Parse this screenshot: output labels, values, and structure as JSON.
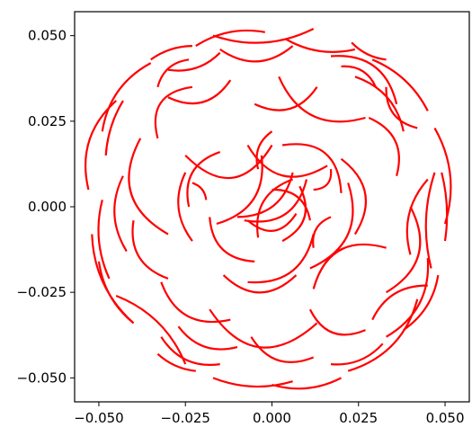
{
  "chart_data": {
    "type": "line",
    "title": "",
    "xlabel": "",
    "ylabel": "",
    "xlim": [
      -0.057,
      0.057
    ],
    "ylim": [
      -0.057,
      0.057
    ],
    "xticks": [
      {
        "value": -0.05,
        "label": "−0.050"
      },
      {
        "value": -0.025,
        "label": "−0.025"
      },
      {
        "value": 0.0,
        "label": "0.000"
      },
      {
        "value": 0.025,
        "label": "0.025"
      },
      {
        "value": 0.05,
        "label": "0.050"
      }
    ],
    "yticks": [
      {
        "value": 0.05,
        "label": "0.050"
      },
      {
        "value": 0.025,
        "label": "0.025"
      },
      {
        "value": 0.0,
        "label": "0.000"
      },
      {
        "value": -0.025,
        "label": "−0.025"
      },
      {
        "value": -0.05,
        "label": "−0.050"
      }
    ],
    "grid": false,
    "series_color": "#ff0000",
    "arcs": [
      {
        "start": [
          0.006,
          0.008
        ],
        "end": [
          -0.004,
          -0.009
        ],
        "bend": 0.004
      },
      {
        "start": [
          0.01,
          0.008
        ],
        "end": [
          -0.008,
          -0.004
        ],
        "bend": -0.005
      },
      {
        "start": [
          0.003,
          -0.01
        ],
        "end": [
          0.008,
          0.006
        ],
        "bend": 0.004
      },
      {
        "start": [
          0.0,
          0.005
        ],
        "end": [
          0.011,
          -0.004
        ],
        "bend": -0.003
      },
      {
        "start": [
          -0.007,
          -0.004
        ],
        "end": [
          0.007,
          -0.002
        ],
        "bend": 0.004
      },
      {
        "start": [
          -0.01,
          -0.003
        ],
        "end": [
          0.006,
          0.01
        ],
        "bend": 0.004
      },
      {
        "start": [
          -0.025,
          0.015
        ],
        "end": [
          0.0,
          0.018
        ],
        "bend": 0.008
      },
      {
        "start": [
          -0.024,
          0.0
        ],
        "end": [
          -0.015,
          0.016
        ],
        "bend": -0.004
      },
      {
        "start": [
          -0.025,
          0.01
        ],
        "end": [
          -0.023,
          -0.01
        ],
        "bend": 0.003
      },
      {
        "start": [
          -0.016,
          -0.005
        ],
        "end": [
          -0.003,
          0.015
        ],
        "bend": 0.005
      },
      {
        "start": [
          -0.007,
          0.018
        ],
        "end": [
          0.016,
          0.012
        ],
        "bend": 0.006
      },
      {
        "start": [
          -0.004,
          0.011
        ],
        "end": [
          0.0,
          0.022
        ],
        "bend": -0.002
      },
      {
        "start": [
          0.003,
          0.018
        ],
        "end": [
          0.02,
          0.004
        ],
        "bend": -0.006
      },
      {
        "start": [
          0.012,
          0.005
        ],
        "end": [
          0.017,
          0.011
        ],
        "bend": 0.002
      },
      {
        "start": [
          0.02,
          0.014
        ],
        "end": [
          0.024,
          -0.008
        ],
        "bend": -0.005
      },
      {
        "start": [
          0.022,
          0.007
        ],
        "end": [
          0.011,
          -0.018
        ],
        "bend": -0.006
      },
      {
        "start": [
          0.017,
          -0.003
        ],
        "end": [
          0.012,
          -0.012
        ],
        "bend": 0.002
      },
      {
        "start": [
          0.012,
          -0.008
        ],
        "end": [
          -0.007,
          -0.022
        ],
        "bend": -0.005
      },
      {
        "start": [
          0.007,
          -0.02
        ],
        "end": [
          -0.014,
          -0.02
        ],
        "bend": -0.005
      },
      {
        "start": [
          -0.005,
          -0.016
        ],
        "end": [
          -0.018,
          -0.003
        ],
        "bend": -0.004
      },
      {
        "start": [
          -0.019,
          0.002
        ],
        "end": [
          -0.023,
          0.007
        ],
        "bend": 0.001
      },
      {
        "start": [
          -0.03,
          0.032
        ],
        "end": [
          -0.012,
          0.037
        ],
        "bend": 0.004
      },
      {
        "start": [
          -0.033,
          0.02
        ],
        "end": [
          -0.023,
          0.035
        ],
        "bend": -0.005
      },
      {
        "start": [
          -0.038,
          0.02
        ],
        "end": [
          -0.03,
          -0.008
        ],
        "bend": 0.007
      },
      {
        "start": [
          -0.04,
          -0.004
        ],
        "end": [
          -0.03,
          -0.021
        ],
        "bend": 0.004
      },
      {
        "start": [
          -0.043,
          0.009
        ],
        "end": [
          -0.042,
          -0.013
        ],
        "bend": 0.003
      },
      {
        "start": [
          -0.032,
          -0.022
        ],
        "end": [
          -0.012,
          -0.033
        ],
        "bend": 0.005
      },
      {
        "start": [
          -0.027,
          -0.035
        ],
        "end": [
          -0.01,
          -0.041
        ],
        "bend": 0.003
      },
      {
        "start": [
          -0.018,
          -0.03
        ],
        "end": [
          0.013,
          -0.034
        ],
        "bend": 0.009
      },
      {
        "start": [
          -0.006,
          -0.038
        ],
        "end": [
          0.012,
          -0.044
        ],
        "bend": 0.004
      },
      {
        "start": [
          0.012,
          -0.024
        ],
        "end": [
          0.033,
          -0.012
        ],
        "bend": -0.006
      },
      {
        "start": [
          0.011,
          -0.03
        ],
        "end": [
          0.027,
          -0.036
        ],
        "bend": 0.004
      },
      {
        "start": [
          0.029,
          -0.033
        ],
        "end": [
          0.045,
          -0.023
        ],
        "bend": -0.003
      },
      {
        "start": [
          0.033,
          -0.025
        ],
        "end": [
          0.04,
          0.0
        ],
        "bend": 0.006
      },
      {
        "start": [
          0.04,
          -0.014
        ],
        "end": [
          0.045,
          0.008
        ],
        "bend": -0.003
      },
      {
        "start": [
          0.036,
          0.009
        ],
        "end": [
          0.028,
          0.026
        ],
        "bend": 0.004
      },
      {
        "start": [
          0.033,
          0.035
        ],
        "end": [
          0.042,
          0.023
        ],
        "bend": 0.003
      },
      {
        "start": [
          0.03,
          0.035
        ],
        "end": [
          0.02,
          0.041
        ],
        "bend": 0.002
      },
      {
        "start": [
          0.017,
          0.044
        ],
        "end": [
          0.036,
          0.03
        ],
        "bend": -0.005
      },
      {
        "start": [
          0.002,
          0.038
        ],
        "end": [
          0.027,
          0.026
        ],
        "bend": 0.006
      },
      {
        "start": [
          -0.005,
          0.03
        ],
        "end": [
          0.013,
          0.035
        ],
        "bend": 0.004
      },
      {
        "start": [
          -0.015,
          0.046
        ],
        "end": [
          0.006,
          0.047
        ],
        "bend": 0.004
      },
      {
        "start": [
          -0.03,
          0.04
        ],
        "end": [
          -0.015,
          0.045
        ],
        "bend": 0.002
      },
      {
        "start": [
          -0.033,
          0.035
        ],
        "end": [
          -0.024,
          0.043
        ],
        "bend": -0.002
      },
      {
        "start": [
          -0.017,
          0.05
        ],
        "end": [
          0.012,
          0.052
        ],
        "bend": 0.003
      },
      {
        "start": [
          0.004,
          0.049
        ],
        "end": [
          0.024,
          0.046
        ],
        "bend": 0.002
      },
      {
        "start": [
          0.023,
          0.048
        ],
        "end": [
          0.033,
          0.043
        ],
        "bend": 0.001
      },
      {
        "start": [
          0.029,
          0.043
        ],
        "end": [
          0.045,
          0.028
        ],
        "bend": -0.002
      },
      {
        "start": [
          0.047,
          0.023
        ],
        "end": [
          0.05,
          -0.005
        ],
        "bend": -0.003
      },
      {
        "start": [
          0.049,
          0.01
        ],
        "end": [
          0.05,
          -0.01
        ],
        "bend": -0.001
      },
      {
        "start": [
          0.047,
          0.01
        ],
        "end": [
          0.046,
          -0.018
        ],
        "bend": 0.002
      },
      {
        "start": [
          0.045,
          -0.015
        ],
        "end": [
          0.033,
          -0.038
        ],
        "bend": -0.004
      },
      {
        "start": [
          0.032,
          -0.04
        ],
        "end": [
          0.017,
          -0.046
        ],
        "bend": -0.002
      },
      {
        "start": [
          0.042,
          -0.027
        ],
        "end": [
          0.022,
          -0.048
        ],
        "bend": -0.004
      },
      {
        "start": [
          0.02,
          -0.05
        ],
        "end": [
          0.0,
          -0.052
        ],
        "bend": -0.002
      },
      {
        "start": [
          0.006,
          -0.051
        ],
        "end": [
          -0.017,
          -0.05
        ],
        "bend": -0.002
      },
      {
        "start": [
          -0.015,
          -0.046
        ],
        "end": [
          -0.032,
          -0.038
        ],
        "bend": -0.003
      },
      {
        "start": [
          -0.025,
          -0.046
        ],
        "end": [
          -0.045,
          -0.026
        ],
        "bend": 0.003
      },
      {
        "start": [
          -0.04,
          -0.034
        ],
        "end": [
          -0.052,
          -0.008
        ],
        "bend": -0.003
      },
      {
        "start": [
          -0.047,
          -0.021
        ],
        "end": [
          -0.049,
          0.002
        ],
        "bend": -0.002
      },
      {
        "start": [
          -0.053,
          0.005
        ],
        "end": [
          -0.045,
          0.031
        ],
        "bend": -0.004
      },
      {
        "start": [
          -0.049,
          0.022
        ],
        "end": [
          -0.035,
          0.042
        ],
        "bend": -0.003
      },
      {
        "start": [
          -0.035,
          0.043
        ],
        "end": [
          -0.023,
          0.047
        ],
        "bend": -0.001
      },
      {
        "start": [
          -0.022,
          0.047
        ],
        "end": [
          -0.002,
          0.051
        ],
        "bend": -0.002
      },
      {
        "start": [
          -0.033,
          -0.043
        ],
        "end": [
          -0.022,
          -0.048
        ],
        "bend": 0.001
      },
      {
        "start": [
          -0.05,
          -0.016
        ],
        "end": [
          -0.04,
          -0.034
        ],
        "bend": 0.002
      },
      {
        "start": [
          -0.043,
          0.031
        ],
        "end": [
          -0.048,
          0.015
        ],
        "bend": 0.001
      },
      {
        "start": [
          0.024,
          0.038
        ],
        "end": [
          0.038,
          0.022
        ],
        "bend": -0.003
      },
      {
        "start": [
          0.038,
          -0.036
        ],
        "end": [
          0.048,
          -0.02
        ],
        "bend": 0.002
      }
    ]
  }
}
